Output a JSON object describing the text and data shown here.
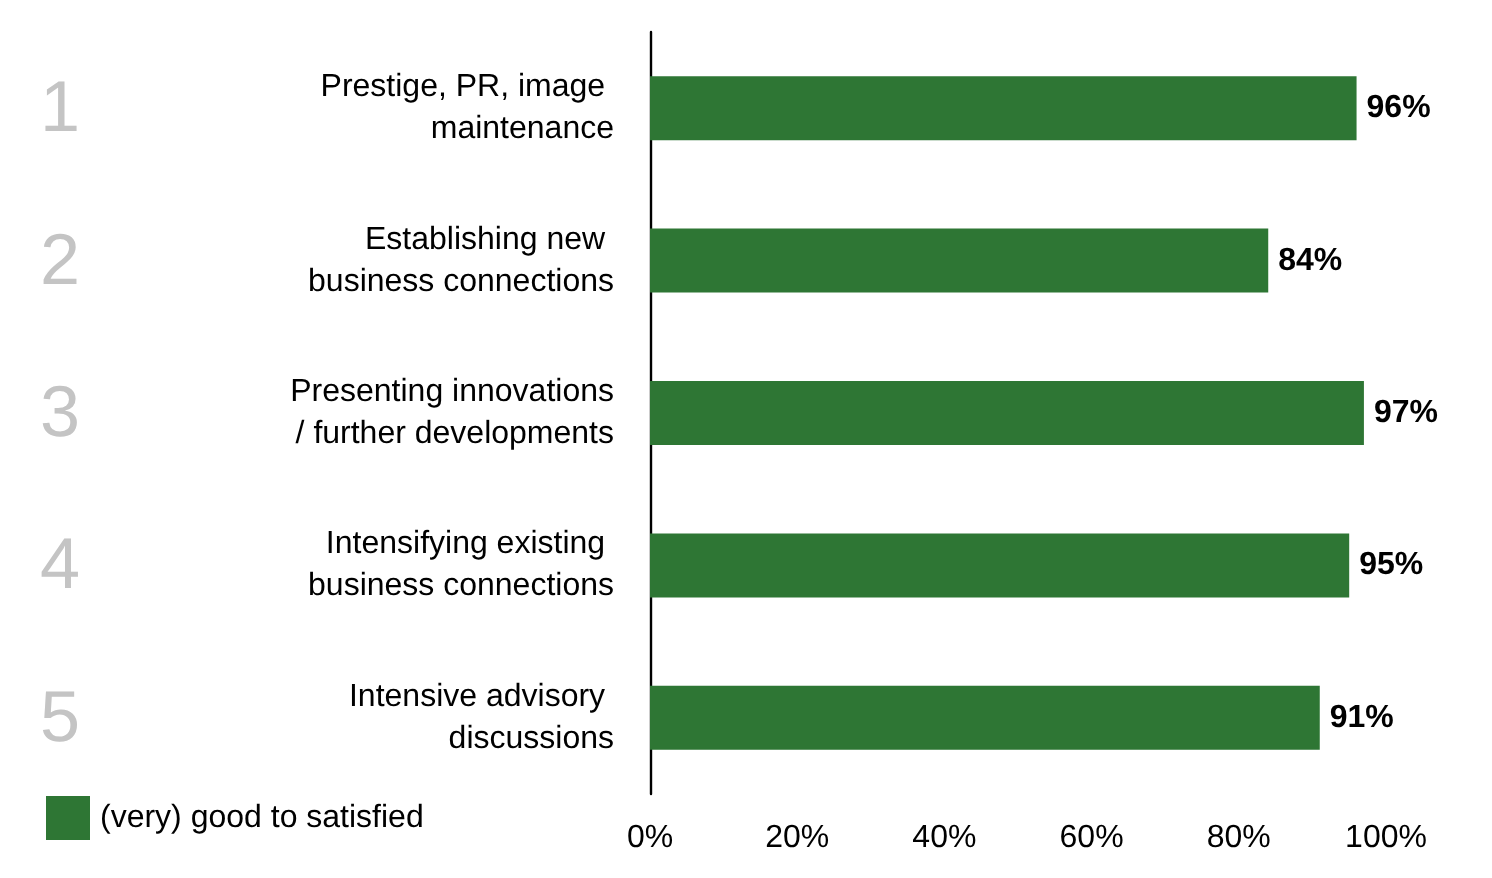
{
  "chart_data": {
    "type": "bar",
    "orientation": "horizontal",
    "categories": [
      "Prestige, PR, image maintenance",
      "Establishing new business connections",
      "Presenting innovations/ further developments",
      "Intensifying existing business connections",
      "Intensive advisory discussions"
    ],
    "series": [
      {
        "name": "(very) good to satisfied",
        "color": "#2e7634",
        "values": [
          96,
          84,
          97,
          95,
          91
        ],
        "value_labels": [
          "96%",
          "84%",
          "97%",
          "95%",
          "91%"
        ]
      }
    ],
    "xlim": [
      0,
      100
    ],
    "xticks": [
      {
        "value": 0,
        "label": "0%"
      },
      {
        "value": 20,
        "label": "20%"
      },
      {
        "value": 40,
        "label": "40%"
      },
      {
        "value": 60,
        "label": "60%"
      },
      {
        "value": 80,
        "label": "80%"
      },
      {
        "value": 100,
        "label": "100%"
      }
    ],
    "annotations": [
      "1",
      "2",
      "3",
      "4",
      "5"
    ],
    "grid": false,
    "legend": "bottom left"
  }
}
